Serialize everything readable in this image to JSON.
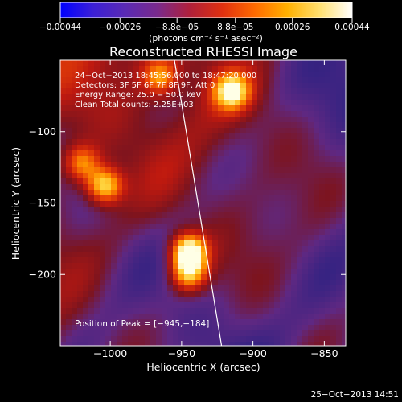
{
  "colorbar": {
    "tick_labels": [
      "−0.00044",
      "−0.00026",
      "−8.8e−05",
      "8.8e−05",
      "0.00026",
      "0.00044"
    ],
    "tick_values": [
      -0.00044,
      -0.00026,
      -8.8e-05,
      8.8e-05,
      0.00026,
      0.00044
    ],
    "range": [
      -0.00044,
      0.00044
    ],
    "unit_label": "(photons cm⁻² s⁻¹ asec⁻²)",
    "colors": [
      "#0000ff",
      "#3b1fd6",
      "#5a2ab4",
      "#7a2a8c",
      "#b0203a",
      "#e03010",
      "#ff6a00",
      "#ffb000",
      "#ffe070",
      "#ffffff"
    ]
  },
  "chart_data": {
    "type": "heatmap",
    "title": "Reconstructed RHESSI Image",
    "xlabel": "Heliocentric X (arcsec)",
    "ylabel": "Heliocentric Y (arcsec)",
    "xlim": [
      -1035,
      -835
    ],
    "ylim": [
      -250,
      -50
    ],
    "x_ticks": [
      -1000,
      -950,
      -900,
      -850
    ],
    "x_tick_labels": [
      "−1000",
      "−950",
      "−900",
      "−850"
    ],
    "y_ticks": [
      -100,
      -150,
      -200
    ],
    "y_tick_labels": [
      "−100",
      "−150",
      "−200"
    ],
    "annotations": [
      "24−Oct−2013 18:45:56.000 to 18:47:20.000",
      "Detectors: 3F 5F 6F 7F 8F 9F, Att 0",
      "Energy Range: 25.0 − 50.0 keV",
      "Clean    Total counts: 2.25E+03"
    ],
    "peak_label": "Position of Peak = [−945,−184]",
    "peak": [
      -945,
      -184
    ],
    "limb_color": "#ffffff",
    "grid": false,
    "bright_sources": [
      {
        "x": -945,
        "y": -184,
        "intensity": 1.0
      },
      {
        "x": -1004,
        "y": -138,
        "intensity": 0.8
      },
      {
        "x": -915,
        "y": -72,
        "intensity": 0.75
      },
      {
        "x": -945,
        "y": -200,
        "intensity": 0.7
      },
      {
        "x": -1020,
        "y": -122,
        "intensity": 0.55
      },
      {
        "x": -965,
        "y": -62,
        "intensity": 0.55
      }
    ]
  },
  "timestamp": "25−Oct−2013 14:51"
}
